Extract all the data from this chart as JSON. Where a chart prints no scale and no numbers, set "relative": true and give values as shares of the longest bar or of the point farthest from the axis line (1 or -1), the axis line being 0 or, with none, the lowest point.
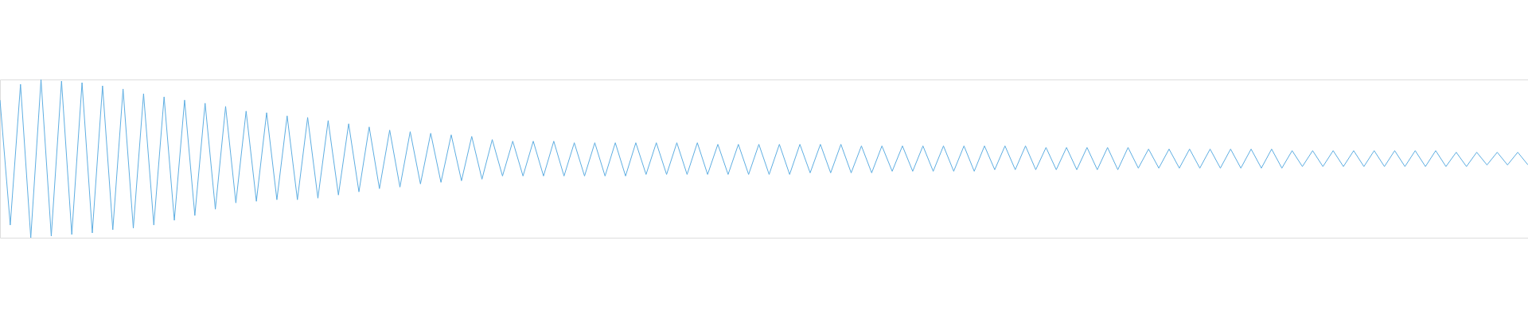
{
  "chart_data": {
    "type": "line",
    "relative": true,
    "categories": [
      null,
      null,
      null,
      null,
      null,
      null,
      null,
      null,
      null,
      null,
      null,
      null,
      null,
      null,
      null,
      null,
      null,
      null,
      null,
      null,
      null,
      null,
      null,
      null,
      null,
      null,
      null,
      null,
      null,
      null,
      null,
      null,
      null,
      null,
      null,
      null,
      null,
      null,
      null,
      null,
      null,
      null,
      null,
      null,
      null,
      null,
      null,
      null,
      null,
      null,
      null,
      null,
      null,
      null,
      null,
      null,
      null,
      null,
      null,
      null,
      null,
      null,
      null,
      null,
      null,
      null,
      null,
      null,
      null,
      null,
      null,
      null,
      null,
      null,
      null,
      null,
      null,
      null,
      null,
      null,
      null,
      null,
      null,
      null,
      null,
      null,
      null,
      null,
      null,
      null,
      null,
      null,
      null,
      null,
      null,
      null,
      null,
      null,
      null,
      null,
      null,
      null,
      null,
      null,
      null,
      null,
      null,
      null,
      null,
      null,
      null,
      null,
      null,
      null,
      null,
      null,
      null,
      null,
      null,
      null,
      null,
      null,
      null,
      null,
      null,
      null,
      null,
      null,
      null,
      null,
      null,
      null,
      null,
      null,
      null,
      null,
      null,
      null,
      null,
      null,
      null,
      null,
      null,
      null,
      null,
      null,
      null,
      null,
      null,
      null
    ],
    "series": [
      {
        "color": "#5eaee2",
        "values": [
          0.87,
          0.08,
          0.97,
          0,
          1.0,
          0.01,
          0.99,
          0.02,
          0.98,
          0.03,
          0.96,
          0.05,
          0.94,
          0.06,
          0.91,
          0.08,
          0.89,
          0.11,
          0.87,
          0.14,
          0.85,
          0.18,
          0.83,
          0.22,
          0.8,
          0.23,
          0.79,
          0.24,
          0.77,
          0.24,
          0.76,
          0.25,
          0.74,
          0.27,
          0.72,
          0.29,
          0.7,
          0.31,
          0.68,
          0.32,
          0.67,
          0.34,
          0.66,
          0.35,
          0.65,
          0.36,
          0.64,
          0.37,
          0.62,
          0.39,
          0.61,
          0.39,
          0.61,
          0.39,
          0.61,
          0.39,
          0.6,
          0.39,
          0.6,
          0.39,
          0.6,
          0.39,
          0.6,
          0.4,
          0.6,
          0.4,
          0.6,
          0.4,
          0.6,
          0.4,
          0.59,
          0.4,
          0.59,
          0.4,
          0.59,
          0.4,
          0.59,
          0.4,
          0.59,
          0.41,
          0.59,
          0.41,
          0.59,
          0.41,
          0.58,
          0.41,
          0.58,
          0.42,
          0.58,
          0.42,
          0.58,
          0.42,
          0.58,
          0.42,
          0.58,
          0.42,
          0.58,
          0.43,
          0.58,
          0.43,
          0.58,
          0.43,
          0.57,
          0.43,
          0.57,
          0.43,
          0.57,
          0.43,
          0.57,
          0.43,
          0.57,
          0.44,
          0.56,
          0.44,
          0.56,
          0.44,
          0.56,
          0.44,
          0.56,
          0.44,
          0.56,
          0.44,
          0.56,
          0.44,
          0.56,
          0.44,
          0.55,
          0.45,
          0.55,
          0.45,
          0.55,
          0.45,
          0.55,
          0.45,
          0.55,
          0.45,
          0.55,
          0.45,
          0.55,
          0.45,
          0.55,
          0.45,
          0.54,
          0.45,
          0.54,
          0.46,
          0.54,
          0.46,
          0.54,
          0.46
        ]
      }
    ]
  }
}
